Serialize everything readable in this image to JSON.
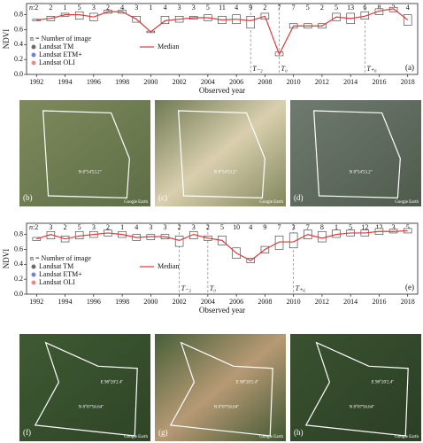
{
  "chart_data": [
    {
      "type": "box",
      "panel_label": "(a)",
      "x_label": "Observed year",
      "y_label": "NDVI",
      "n_label": "n:",
      "x": [
        1992,
        1993,
        1994,
        1995,
        1996,
        1997,
        1998,
        1999,
        2000,
        2001,
        2002,
        2003,
        2004,
        2005,
        2006,
        2007,
        2008,
        2009,
        2010,
        2011,
        2012,
        2013,
        2014,
        2015,
        2016,
        2017,
        2018
      ],
      "n": [
        2,
        2,
        1,
        5,
        3,
        2,
        4,
        3,
        1,
        4,
        3,
        3,
        5,
        11,
        4,
        9,
        2,
        7,
        7,
        5,
        2,
        5,
        13,
        6,
        8,
        3,
        4
      ],
      "median": {
        "name": "Median",
        "color": "#e03a3a",
        "values": [
          0.73,
          0.75,
          0.8,
          0.8,
          0.77,
          0.84,
          0.84,
          0.74,
          0.57,
          0.72,
          0.74,
          0.76,
          0.76,
          0.73,
          0.74,
          0.72,
          0.78,
          0.27,
          0.65,
          0.65,
          0.65,
          0.77,
          0.75,
          0.78,
          0.85,
          0.88,
          0.73
        ]
      },
      "q1": [
        0.72,
        0.72,
        0.78,
        0.74,
        0.72,
        0.82,
        0.82,
        0.7,
        0.56,
        0.68,
        0.7,
        0.74,
        0.72,
        0.68,
        0.68,
        0.62,
        0.74,
        0.25,
        0.62,
        0.62,
        0.62,
        0.72,
        0.68,
        0.74,
        0.8,
        0.84,
        0.66
      ],
      "q3": [
        0.74,
        0.78,
        0.82,
        0.84,
        0.82,
        0.86,
        0.86,
        0.78,
        0.58,
        0.78,
        0.78,
        0.78,
        0.8,
        0.78,
        0.8,
        0.78,
        0.82,
        0.3,
        0.68,
        0.68,
        0.68,
        0.82,
        0.82,
        0.84,
        0.88,
        0.9,
        0.8
      ],
      "legend_title": "n = Number of image",
      "sensors": [
        {
          "name": "Landsat TM",
          "color": "#6b6b6b"
        },
        {
          "name": "Landsat ETM+",
          "color": "#6f84d6"
        },
        {
          "name": "Landsat OLI",
          "color": "#ee8a8a"
        }
      ],
      "annotations": [
        {
          "x": 2007,
          "label": "T₋₂"
        },
        {
          "x": 2009,
          "label": "T₀"
        },
        {
          "x": 2015,
          "label": "T₊₆"
        }
      ],
      "xlim": [
        1991.3,
        2018.7
      ],
      "xticks": [
        1992,
        1994,
        1996,
        1998,
        2000,
        2002,
        2004,
        2006,
        2008,
        2010,
        2012,
        2014,
        2016,
        2018
      ],
      "ylim": [
        0,
        0.95
      ],
      "yticks": [
        {
          "value": 0,
          "label": "0.0"
        },
        {
          "value": 0.2,
          "label": "0.2"
        },
        {
          "value": 0.4,
          "label": "0.4"
        },
        {
          "value": 0.6,
          "label": "0.6"
        },
        {
          "value": 0.8,
          "label": "0.8"
        }
      ]
    },
    {
      "type": "box",
      "panel_label": "(e)",
      "x_label": "Observed year",
      "y_label": "NDVI",
      "n_label": "n:",
      "x": [
        1992,
        1993,
        1994,
        1995,
        1996,
        1997,
        1998,
        1999,
        2000,
        2001,
        2002,
        2003,
        2004,
        2005,
        2006,
        2007,
        2008,
        2009,
        2010,
        2011,
        2012,
        2013,
        2014,
        2015,
        2016,
        2017,
        2018
      ],
      "n": [
        2,
        3,
        2,
        5,
        3,
        2,
        1,
        4,
        3,
        3,
        2,
        3,
        2,
        5,
        10,
        4,
        9,
        7,
        3,
        7,
        8,
        1,
        5,
        12,
        12,
        3,
        5
      ],
      "median": {
        "name": "Median",
        "color": "#e03a3a",
        "values": [
          0.74,
          0.8,
          0.74,
          0.78,
          0.8,
          0.82,
          0.8,
          0.76,
          0.77,
          0.77,
          0.72,
          0.8,
          0.75,
          0.72,
          0.55,
          0.45,
          0.6,
          0.7,
          0.7,
          0.8,
          0.75,
          0.8,
          0.82,
          0.82,
          0.84,
          0.84,
          0.85
        ]
      },
      "q1": [
        0.72,
        0.74,
        0.7,
        0.74,
        0.76,
        0.78,
        0.76,
        0.72,
        0.73,
        0.74,
        0.64,
        0.74,
        0.72,
        0.66,
        0.48,
        0.42,
        0.55,
        0.6,
        0.62,
        0.74,
        0.7,
        0.76,
        0.78,
        0.78,
        0.8,
        0.82,
        0.82
      ],
      "q3": [
        0.76,
        0.84,
        0.78,
        0.84,
        0.84,
        0.86,
        0.84,
        0.8,
        0.8,
        0.8,
        0.78,
        0.84,
        0.78,
        0.78,
        0.62,
        0.48,
        0.64,
        0.78,
        0.82,
        0.86,
        0.84,
        0.86,
        0.86,
        0.86,
        0.88,
        0.87,
        0.88
      ],
      "legend_title": "n = Number of image",
      "sensors": [
        {
          "name": "Landsat TM",
          "color": "#6b6b6b"
        },
        {
          "name": "Landsat ETM+",
          "color": "#6f84d6"
        },
        {
          "name": "Landsat OLI",
          "color": "#ee8a8a"
        }
      ],
      "annotations": [
        {
          "x": 2002,
          "label": "T₋₂"
        },
        {
          "x": 2004,
          "label": "T₀"
        },
        {
          "x": 2010,
          "label": "T₊₆"
        }
      ],
      "xlim": [
        1991.3,
        2018.7
      ],
      "xticks": [
        1992,
        1994,
        1996,
        1998,
        2000,
        2002,
        2004,
        2006,
        2008,
        2010,
        2012,
        2014,
        2016,
        2018
      ],
      "ylim": [
        0,
        0.95
      ],
      "yticks": [
        {
          "value": 0,
          "label": "0.0"
        },
        {
          "value": 0.2,
          "label": "0.2"
        },
        {
          "value": 0.4,
          "label": "0.4"
        },
        {
          "value": 0.6,
          "label": "0.6"
        },
        {
          "value": 0.8,
          "label": "0.8"
        }
      ]
    }
  ],
  "images": [
    {
      "label": "(b)",
      "coord": "N 8°54'53.2\"",
      "credit": "Google Earth"
    },
    {
      "label": "(c)",
      "coord": "N 8°54'53.2\"",
      "credit": "Google Earth"
    },
    {
      "label": "(d)",
      "coord": "N 8°54'53.2\"",
      "credit": "Google Earth"
    },
    {
      "label": "(f)",
      "coord": "N 8°07'56.64\"",
      "coord2": "E 98°20'2.4\"",
      "credit": "Google Earth"
    },
    {
      "label": "(g)",
      "coord": "N 8°07'56.64\"",
      "coord2": "E 98°20'2.4\"",
      "credit": "Google Earth"
    },
    {
      "label": "(h)",
      "coord": "N 8°07'56.64\"",
      "coord2": "E 98°20'2.4\"",
      "credit": "Google Earth"
    }
  ]
}
